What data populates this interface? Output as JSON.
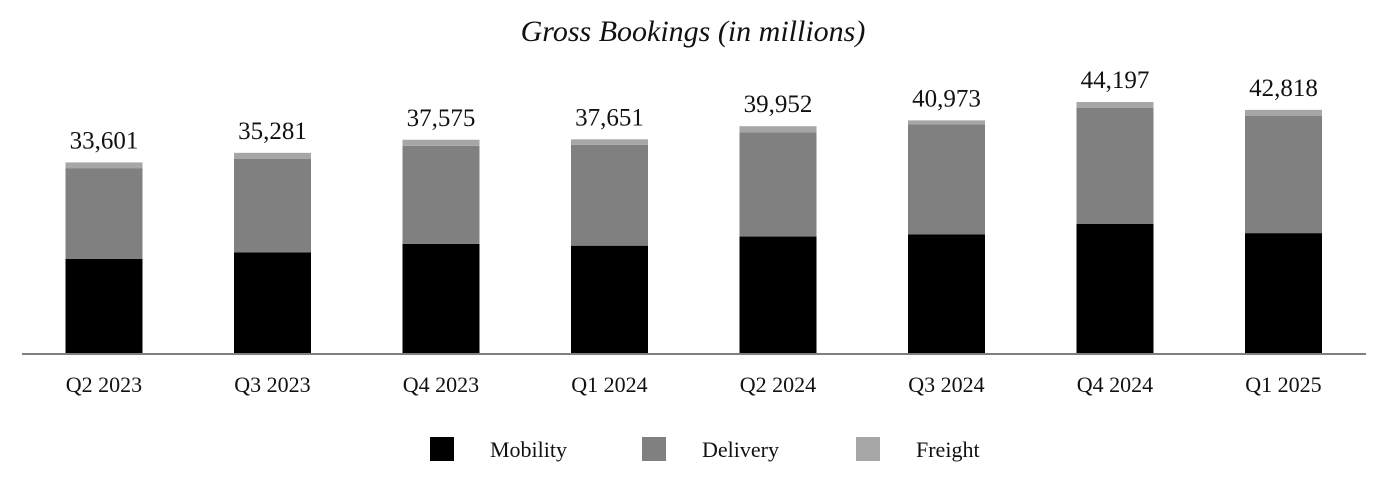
{
  "chart_data": {
    "type": "bar",
    "stacked": true,
    "title": "Gross Bookings (in millions)",
    "xlabel": "",
    "ylabel": "",
    "categories": [
      "Q2 2023",
      "Q3 2023",
      "Q4 2023",
      "Q1 2024",
      "Q2 2024",
      "Q3 2024",
      "Q4 2024",
      "Q1 2025"
    ],
    "totals": [
      33601,
      35281,
      37575,
      37651,
      39952,
      40973,
      44197,
      42818
    ],
    "total_labels": [
      "33,601",
      "35,281",
      "37,575",
      "37,651",
      "39,952",
      "40,973",
      "44,197",
      "42,818"
    ],
    "series": [
      {
        "name": "Mobility",
        "color": "#000000",
        "values": [
          16700,
          17800,
          19300,
          19000,
          20600,
          21000,
          22800,
          21200
        ]
      },
      {
        "name": "Delivery",
        "color": "#808080",
        "values": [
          15900,
          16400,
          17200,
          17700,
          18300,
          19300,
          20400,
          20600
        ]
      },
      {
        "name": "Freight",
        "color": "#a6a6a6",
        "values": [
          1001,
          1081,
          1075,
          951,
          1052,
          673,
          997,
          1018
        ]
      }
    ],
    "ylim": [
      0,
      44197
    ],
    "grid": false,
    "legend_position": "bottom"
  }
}
